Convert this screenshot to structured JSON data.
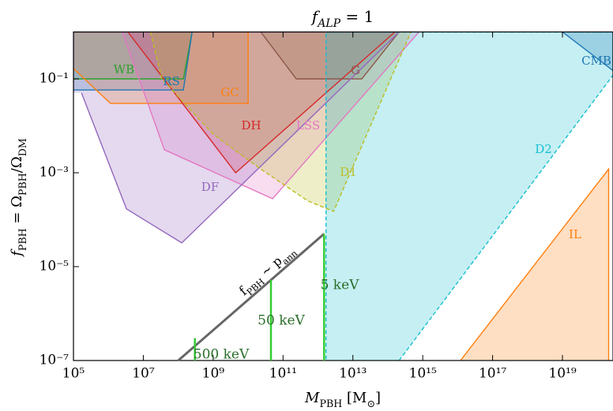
{
  "chart_data": {
    "type": "region",
    "title": [
      {
        "text": "f"
      },
      {
        "sub": "ALP"
      },
      {
        "text": " = 1"
      }
    ],
    "x_label": [
      {
        "text": "M"
      },
      {
        "sub": "PBH"
      },
      {
        "text": " [M"
      },
      {
        "sub": "⊙"
      },
      {
        "text": "]"
      }
    ],
    "y_label": [
      {
        "text": "f"
      },
      {
        "sub": "PBH"
      },
      {
        "text": " = Ω"
      },
      {
        "sub": "PBH"
      },
      {
        "text": "/Ω"
      },
      {
        "sub": "DM"
      }
    ],
    "xscale": "log",
    "yscale": "log",
    "xlim": [
      100000.0,
      2.8e+20
    ],
    "ylim": [
      1e-07,
      1
    ],
    "xticks": [
      {
        "value": 100000.0,
        "label": "10⁵"
      },
      {
        "value": 10000000.0,
        "label": "10⁷"
      },
      {
        "value": 1000000000.0,
        "label": "10⁹"
      },
      {
        "value": 100000000000.0,
        "label": "10¹¹"
      },
      {
        "value": 10000000000000.0,
        "label": "10¹³"
      },
      {
        "value": 1000000000000000.0,
        "label": "10¹⁵"
      },
      {
        "value": 1e+17,
        "label": "10¹⁷"
      },
      {
        "value": 1e+19,
        "label": "10¹⁹"
      }
    ],
    "yticks": [
      {
        "value": 1e-07,
        "label": "10⁻⁷"
      },
      {
        "value": 1e-05,
        "label": "10⁻⁵"
      },
      {
        "value": 0.001,
        "label": "10⁻³"
      },
      {
        "value": 0.1,
        "label": "10⁻¹"
      }
    ],
    "series": [
      {
        "name": "WB",
        "color": "#2ca02c",
        "x": [
          100000.0,
          140000000.0,
          250000000.0,
          100000.0
        ],
        "values": [
          0.1,
          0.1,
          1,
          1
        ]
      },
      {
        "name": "RS",
        "color": "#1f77b4",
        "x": [
          100000.0,
          140000000.0,
          250000000.0,
          100000.0
        ],
        "values": [
          0.058,
          0.058,
          1,
          1
        ]
      },
      {
        "name": "GC",
        "color": "#ff7f0e",
        "x": [
          100000.0,
          1150000.0,
          10000000000.0,
          10000000000.0,
          100000.0
        ],
        "values": [
          0.166,
          0.03,
          0.03,
          1,
          1
        ]
      },
      {
        "name": "DH",
        "color": "#d62728",
        "x": [
          3600000.0,
          4400000000.0,
          160000000000000.0
        ],
        "values": [
          1,
          0.001,
          1
        ]
      },
      {
        "name": "LSS",
        "color": "#e377c2",
        "x": [
          2500000.0,
          40000000.0,
          50000000000.0,
          780000000000000.0
        ],
        "values": [
          1,
          0.0031,
          0.00028,
          1
        ]
      },
      {
        "name": "G",
        "color": "#8c564b",
        "x": [
          23000000000.0,
          240000000000.0,
          18000000000000.0,
          210000000000000.0
        ],
        "values": [
          1,
          0.1,
          0.1,
          1
        ]
      },
      {
        "name": "DF",
        "color": "#9467bd",
        "x": [
          170000.0,
          3300000.0,
          126000000.0,
          210000000000000.0,
          100000.0,
          100000.0
        ],
        "values": [
          0.05,
          0.00017,
          3.2e-05,
          1,
          1,
          0.05
        ]
      },
      {
        "name": "D1",
        "color": "#bcbd22",
        "dashed": true,
        "x": [
          16000000.0,
          34000000.0,
          1000000000.0,
          23000000000.0,
          520000000000.0,
          2800000000000.0,
          460000000000000.0
        ],
        "values": [
          1,
          0.1,
          0.0066,
          0.0012,
          0.00025,
          0.00015,
          1
        ]
      },
      {
        "name": "D2",
        "color": "#17becf",
        "dashed": true,
        "x": [
          210000000000000.0,
          2.8e+20,
          2.8e+20,
          1700000000000.0,
          1700000000000.0
        ],
        "values": [
          1e-07,
          0.12,
          1,
          1,
          1e-07
        ]
      },
      {
        "name": "CMB",
        "color": "#1f77b4",
        "x": [
          1e+19,
          2.8e+20,
          2.8e+20
        ],
        "values": [
          1,
          0.15,
          1
        ]
      },
      {
        "name": "IL",
        "color": "#ff7f0e",
        "x": [
          1.2e+16,
          2.1e+20,
          2.1e+20
        ],
        "values": [
          1e-07,
          0.0012,
          1e-07
        ]
      }
    ],
    "relation": {
      "label": [
        {
          "text": "f"
        },
        {
          "sub": "PBH"
        },
        {
          "text": " ~ p"
        },
        {
          "sub": "ann"
        }
      ],
      "color": "#666666",
      "x": [
        100000000.0,
        1500000000000.0
      ],
      "values": [
        1e-07,
        5e-05
      ]
    },
    "energy_lines": [
      {
        "label": "500 keV",
        "color": "#33cc33",
        "label_color": "#2a6e2a",
        "x": [
          300000000.0,
          300000000.0
        ],
        "values": [
          1e-07,
          3e-07
        ]
      },
      {
        "label": "50 keV",
        "color": "#33cc33",
        "label_color": "#2a6e2a",
        "x": [
          45000000000.0,
          45000000000.0
        ],
        "values": [
          1e-07,
          5.2e-06
        ]
      },
      {
        "label": "5 keV",
        "color": "#33cc33",
        "label_color": "#2a6e2a",
        "x": [
          1500000000000.0,
          1500000000000.0
        ],
        "values": [
          1e-07,
          5e-05
        ]
      }
    ]
  }
}
